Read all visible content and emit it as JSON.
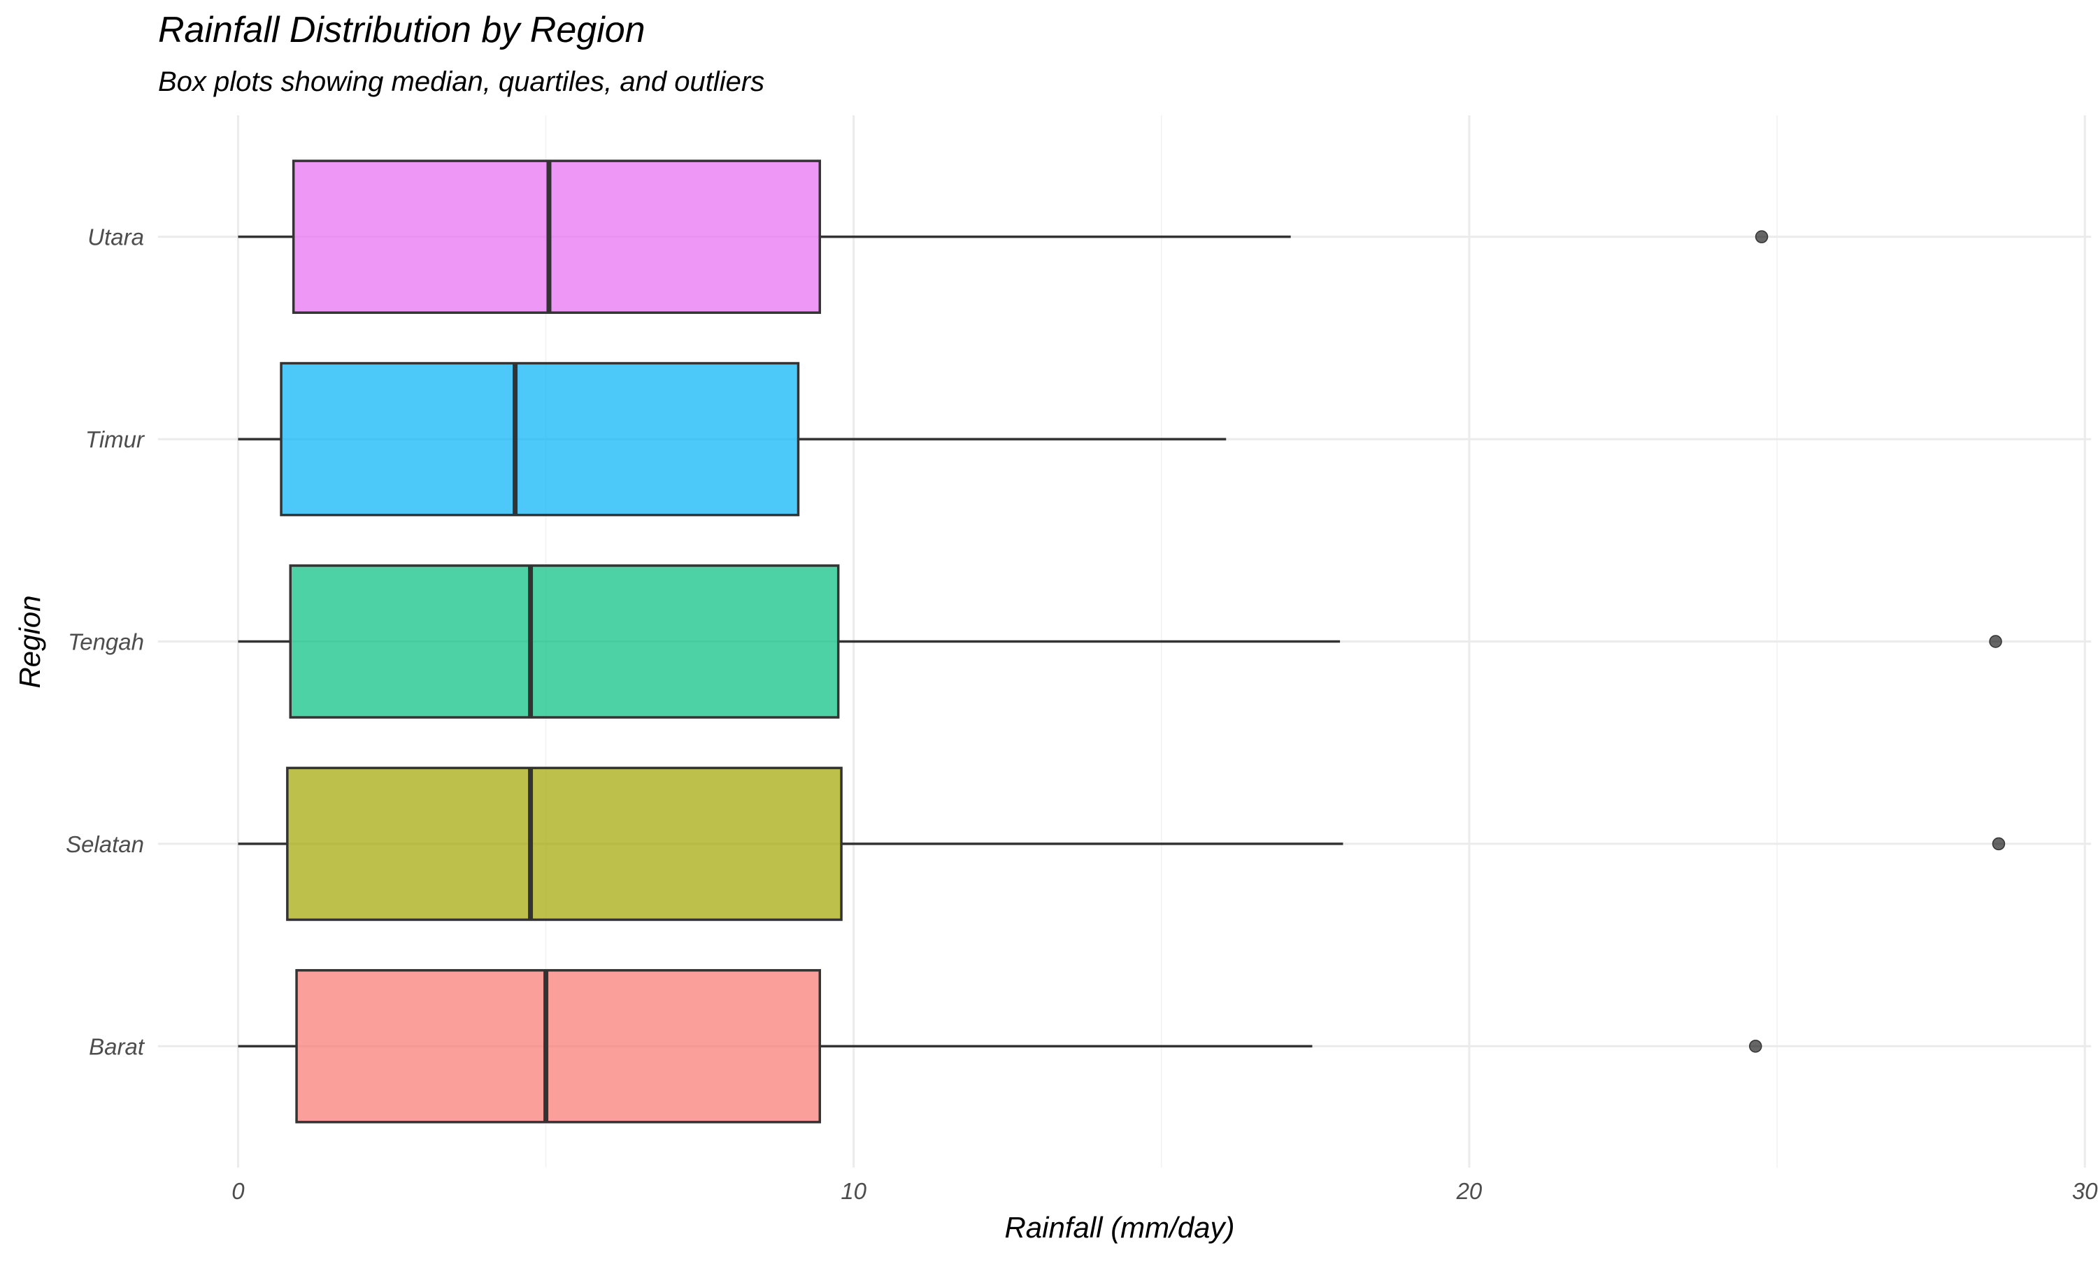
{
  "chart_data": {
    "type": "boxplot",
    "orientation": "horizontal",
    "title": "Rainfall Distribution by Region",
    "subtitle": "Box plots showing median, quartiles, and outliers",
    "xlabel": "Rainfall (mm/day)",
    "ylabel": "Region",
    "xlim": [
      -1.3,
      30.1
    ],
    "x_ticks": [
      0,
      10,
      20,
      30
    ],
    "x_minor_ticks": [
      5,
      15,
      25
    ],
    "grid": true,
    "legend": "none",
    "categories": [
      "Barat",
      "Selatan",
      "Tengah",
      "Timur",
      "Utara"
    ],
    "series": [
      {
        "name": "Barat",
        "color": "#F8766D",
        "whisker_low": 0.0,
        "q1": 0.95,
        "median": 5.0,
        "q3": 9.45,
        "whisker_high": 17.45,
        "outliers": [
          24.65
        ]
      },
      {
        "name": "Selatan",
        "color": "#A3A500",
        "whisker_low": 0.0,
        "q1": 0.8,
        "median": 4.75,
        "q3": 9.8,
        "whisker_high": 17.95,
        "outliers": [
          28.6
        ]
      },
      {
        "name": "Tengah",
        "color": "#00BF7D",
        "whisker_low": 0.0,
        "q1": 0.85,
        "median": 4.75,
        "q3": 9.75,
        "whisker_high": 17.9,
        "outliers": [
          28.55
        ]
      },
      {
        "name": "Timur",
        "color": "#00B0F6",
        "whisker_low": 0.0,
        "q1": 0.7,
        "median": 4.5,
        "q3": 9.1,
        "whisker_high": 16.05,
        "outliers": []
      },
      {
        "name": "Utara",
        "color": "#E76BF3",
        "whisker_low": 0.0,
        "q1": 0.9,
        "median": 5.05,
        "q3": 9.45,
        "whisker_high": 17.1,
        "outliers": [
          24.75
        ]
      }
    ]
  }
}
